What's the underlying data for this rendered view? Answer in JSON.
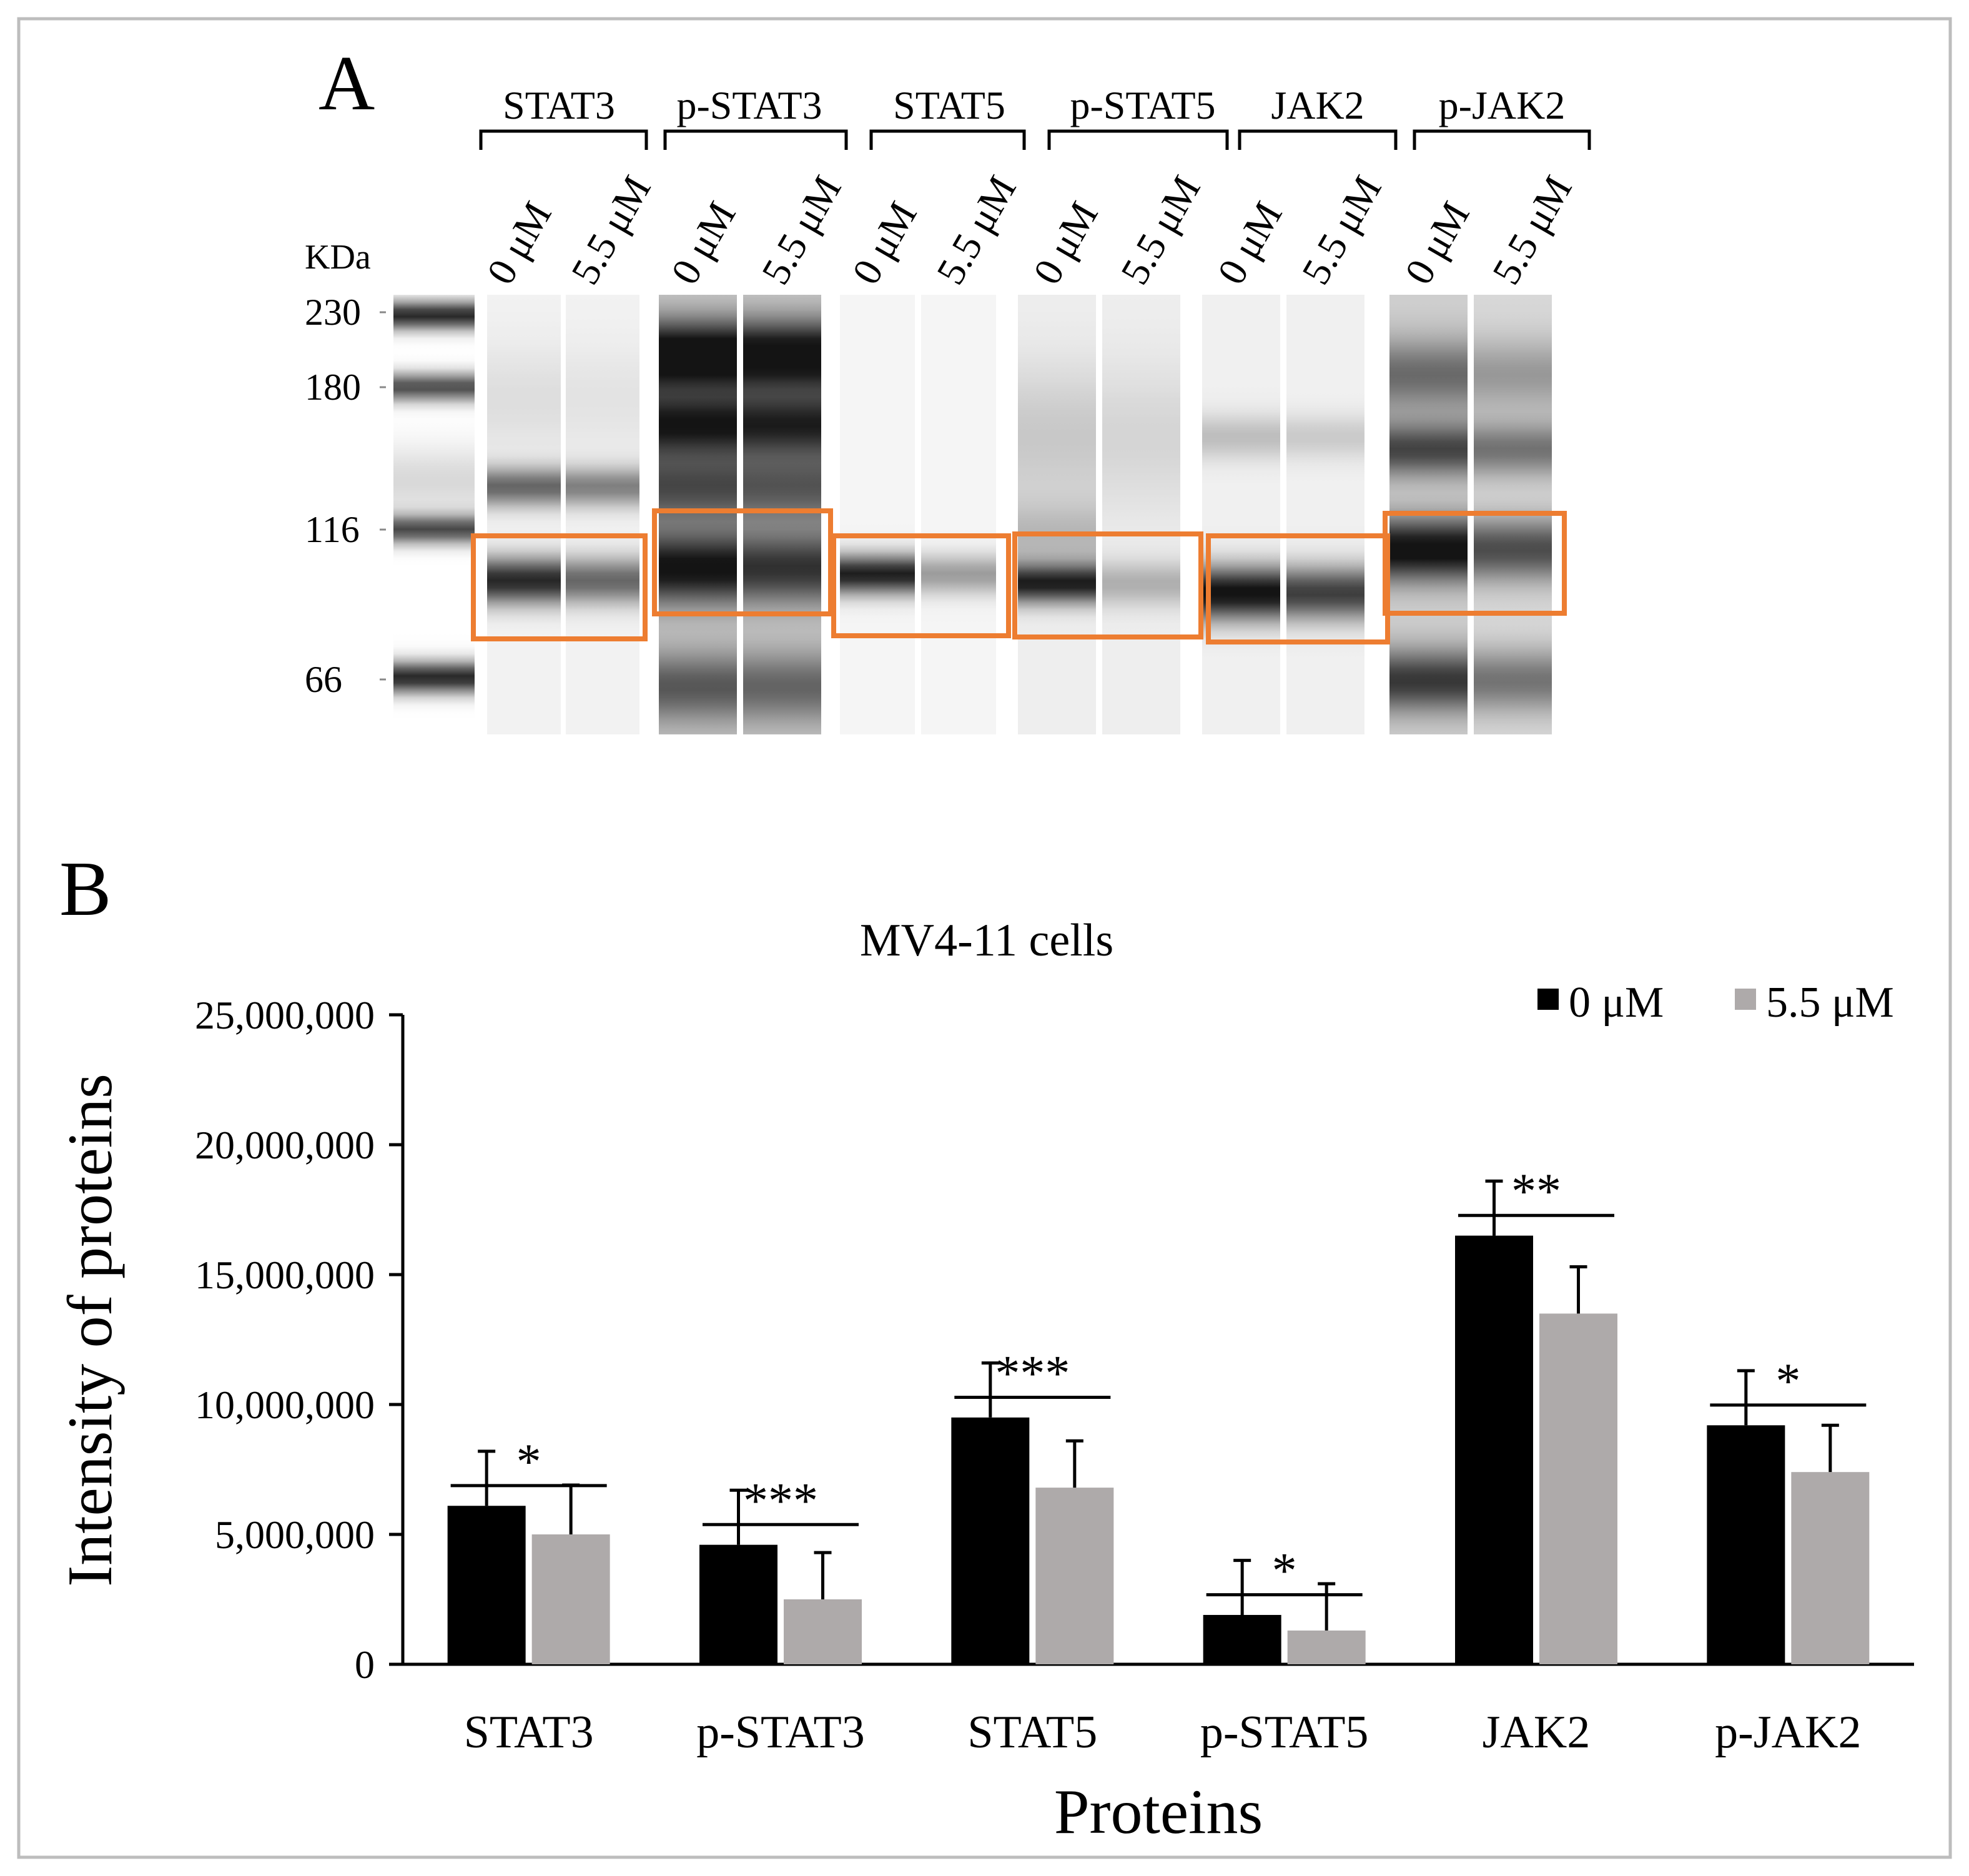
{
  "panel_a": {
    "label": "A",
    "kda_label": "KDa",
    "markers": [
      "230",
      "180",
      "116",
      "66"
    ],
    "proteins": [
      "STAT3",
      "p-STAT3",
      "STAT5",
      "p-STAT5",
      "JAK2",
      "p-JAK2"
    ],
    "doses": [
      "0 μM",
      "5.5 μM"
    ],
    "highlight_color": "#ed7d31"
  },
  "panel_b": {
    "label": "B",
    "significance": [
      "*",
      "***",
      "***",
      "*",
      "**",
      "*"
    ]
  },
  "chart_data": {
    "type": "bar",
    "title": "MV4-11 cells",
    "xlabel": "Proteins",
    "ylabel": "Intensity of proteins",
    "categories": [
      "STAT3",
      "p-STAT3",
      "STAT5",
      "p-STAT5",
      "JAK2",
      "p-JAK2"
    ],
    "ylim": [
      0,
      25000000
    ],
    "yticks": [
      0,
      5000000,
      10000000,
      15000000,
      20000000,
      25000000
    ],
    "ytick_labels": [
      "0",
      "5,000,000",
      "10,000,000",
      "15,000,000",
      "20,000,000",
      "25,000,000"
    ],
    "legend_position": "top-right",
    "series": [
      {
        "name": "0 μM",
        "color": "#000000",
        "values": [
          6100000,
          4600000,
          9500000,
          1900000,
          16500000,
          9200000
        ],
        "errors": [
          2100000,
          2100000,
          2100000,
          2100000,
          2100000,
          2100000
        ]
      },
      {
        "name": "5.5 μM",
        "color": "#aeaaaa",
        "values": [
          5000000,
          2500000,
          6800000,
          1300000,
          13500000,
          7400000
        ],
        "errors": [
          1900000,
          1800000,
          1800000,
          1800000,
          1800000,
          1800000
        ]
      }
    ]
  }
}
